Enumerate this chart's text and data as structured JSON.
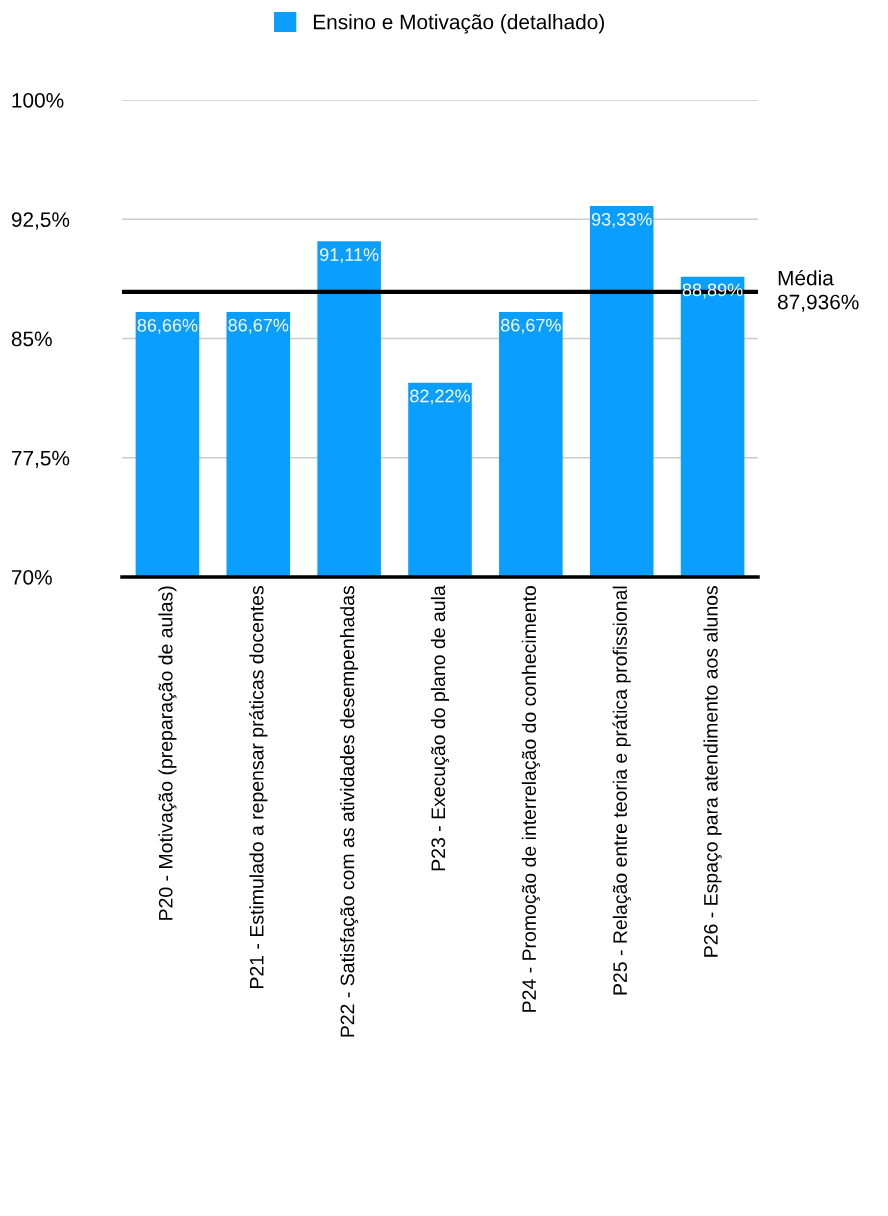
{
  "chart_data": {
    "type": "bar",
    "categories": [
      "P20 - Motivação (preparação de aulas)",
      "P21 - Estimulado a repensar práticas docentes",
      "P22 - Satisfação com as atividades desempenhadas",
      "P23 - Execução do plano de aula",
      "P24 - Promoção de interrelação do conhecimento",
      "P25 - Relação entre teoria e prática profissional",
      "P26 - Espaço para atendimento aos alunos"
    ],
    "series": [
      {
        "name": "Ensino e Motivação (detalhado)",
        "color": "#0a9fff",
        "values": [
          86.66,
          86.67,
          91.11,
          82.22,
          86.67,
          93.33,
          88.89
        ],
        "value_labels": [
          "86,66%",
          "86,67%",
          "91,11%",
          "82,22%",
          "86,67%",
          "93,33%",
          "88,89%"
        ]
      }
    ],
    "ylim": [
      70,
      100
    ],
    "yticks": [
      {
        "value": 70,
        "label": "70%"
      },
      {
        "value": 77.5,
        "label": "77,5%"
      },
      {
        "value": 85,
        "label": "85%"
      },
      {
        "value": 92.5,
        "label": "92,5%"
      },
      {
        "value": 100,
        "label": "100%"
      }
    ],
    "grid": "y",
    "legend": "top",
    "ref_lines": [
      {
        "axis": "y",
        "value": 87.936,
        "label": "Média\n87,936%",
        "color": "#000000",
        "line_style": "solid"
      }
    ]
  }
}
